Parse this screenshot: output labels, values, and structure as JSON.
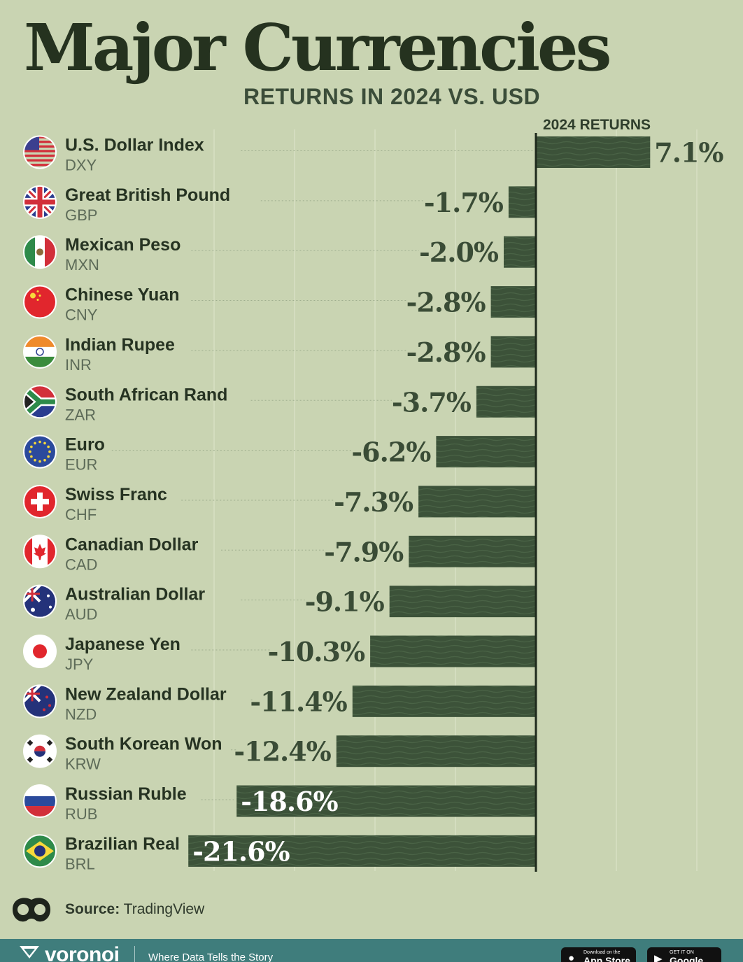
{
  "header": {
    "title": "Major Currencies",
    "subtitle": "RETURNS IN 2024 VS. USD"
  },
  "chart_data": {
    "type": "bar",
    "orientation": "horizontal",
    "title": "Major Currencies",
    "subtitle": "RETURNS IN 2024 VS. USD",
    "column_label": "2024 RETURNS",
    "unit": "%",
    "xlim": [
      -21.6,
      11.5
    ],
    "grid": true,
    "colors": {
      "bar": "#3c5239",
      "background": "#c9d4b2"
    },
    "categories": [
      {
        "name": "U.S. Dollar Index",
        "code": "DXY",
        "value": 7.1,
        "label": "7.1%",
        "flag": "us-flag-icon"
      },
      {
        "name": "Great British Pound",
        "code": "GBP",
        "value": -1.7,
        "label": "-1.7%",
        "flag": "uk-flag-icon"
      },
      {
        "name": "Mexican Peso",
        "code": "MXN",
        "value": -2.0,
        "label": "-2.0%",
        "flag": "mexico-flag-icon"
      },
      {
        "name": "Chinese Yuan",
        "code": "CNY",
        "value": -2.8,
        "label": "-2.8%",
        "flag": "china-flag-icon"
      },
      {
        "name": "Indian Rupee",
        "code": "INR",
        "value": -2.8,
        "label": "-2.8%",
        "flag": "india-flag-icon"
      },
      {
        "name": "South African Rand",
        "code": "ZAR",
        "value": -3.7,
        "label": "-3.7%",
        "flag": "south-africa-flag-icon"
      },
      {
        "name": "Euro",
        "code": "EUR",
        "value": -6.2,
        "label": "-6.2%",
        "flag": "eu-flag-icon"
      },
      {
        "name": "Swiss Franc",
        "code": "CHF",
        "value": -7.3,
        "label": "-7.3%",
        "flag": "swiss-flag-icon"
      },
      {
        "name": "Canadian Dollar",
        "code": "CAD",
        "value": -7.9,
        "label": "-7.9%",
        "flag": "canada-flag-icon"
      },
      {
        "name": "Australian Dollar",
        "code": "AUD",
        "value": -9.1,
        "label": "-9.1%",
        "flag": "australia-flag-icon"
      },
      {
        "name": "Japanese Yen",
        "code": "JPY",
        "value": -10.3,
        "label": "-10.3%",
        "flag": "japan-flag-icon"
      },
      {
        "name": "New Zealand Dollar",
        "code": "NZD",
        "value": -11.4,
        "label": "-11.4%",
        "flag": "new-zealand-flag-icon"
      },
      {
        "name": "South Korean Won",
        "code": "KRW",
        "value": -12.4,
        "label": "-12.4%",
        "flag": "south-korea-flag-icon"
      },
      {
        "name": "Russian Ruble",
        "code": "RUB",
        "value": -18.6,
        "label": "-18.6%",
        "flag": "russia-flag-icon"
      },
      {
        "name": "Brazilian Real",
        "code": "BRL",
        "value": -21.6,
        "label": "-21.6%",
        "flag": "brazil-flag-icon"
      }
    ]
  },
  "source": {
    "label": "Source:",
    "value": "TradingView"
  },
  "footer": {
    "brand": "voronoi",
    "tagline": "Where Data Tells the Story",
    "app_store_small": "Download on the",
    "app_store_big": "App Store",
    "google_play_small": "GET IT ON",
    "google_play_big": "Google Play"
  }
}
